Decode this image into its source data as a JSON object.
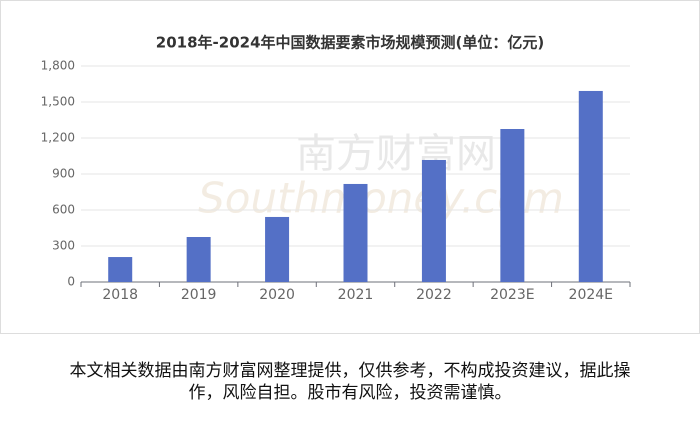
{
  "chart_data": {
    "type": "bar",
    "title": "2018年-2024年中国数据要素市场规模预测(单位：亿元)",
    "categories": [
      "2018",
      "2019",
      "2020",
      "2021",
      "2022",
      "2023E",
      "2024E"
    ],
    "values": [
      208,
      375,
      542,
      817,
      1017,
      1275,
      1592
    ],
    "color": "#5470c6",
    "ylim": [
      0,
      1800
    ],
    "yticks": [
      0,
      300,
      600,
      900,
      {
        "value": 1200,
        "label": "1,200"
      },
      {
        "value": 1500,
        "label": "1,500"
      },
      {
        "value": 1800,
        "label": "1,800"
      }
    ],
    "grid": true
  },
  "watermark": {
    "name": "南方财富网",
    "site": "Southmoney.com"
  },
  "caption": "本文相关数据由南方财富网整理提供，仅供参考，不构成投资建议，据此操作，风险自担。股市有风险，投资需谨慎。"
}
